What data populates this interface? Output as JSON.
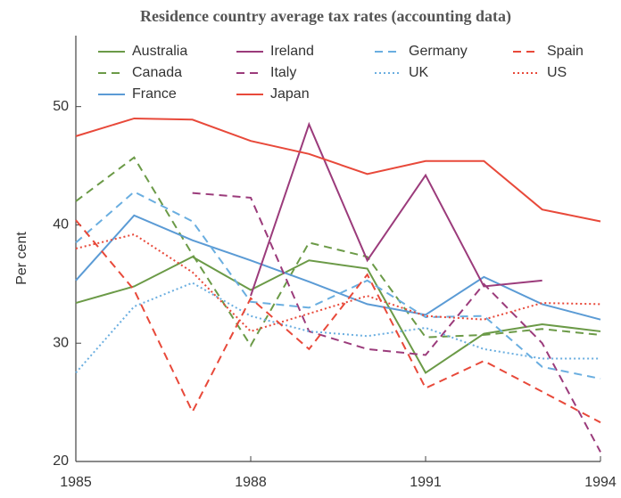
{
  "chart_data": {
    "type": "line",
    "title": "Residence country average tax rates (accounting data)",
    "y_label": "Per cent",
    "x": [
      1985,
      1986,
      1987,
      1988,
      1989,
      1990,
      1991,
      1992,
      1993,
      1994
    ],
    "xlim": [
      1985,
      1994
    ],
    "xticks": [
      1985,
      1988,
      1991,
      1994
    ],
    "ylim": [
      20,
      56
    ],
    "yticks": [
      20,
      30,
      40,
      50
    ],
    "grid": false,
    "series": [
      {
        "name": "Australia",
        "color": "#6b9a47",
        "dash": "solid",
        "values": [
          33.4,
          34.8,
          37.3,
          34.5,
          37.0,
          36.3,
          27.5,
          30.8,
          31.6,
          31.0
        ]
      },
      {
        "name": "Canada",
        "color": "#6b9a47",
        "dash": "dashed",
        "values": [
          42.0,
          45.7,
          37.5,
          29.8,
          38.5,
          37.3,
          30.5,
          30.7,
          31.2,
          30.7
        ]
      },
      {
        "name": "France",
        "color": "#5b9bd5",
        "dash": "solid",
        "values": [
          35.3,
          40.8,
          38.7,
          37.0,
          35.2,
          33.3,
          32.4,
          35.6,
          33.3,
          32.0
        ]
      },
      {
        "name": "Ireland",
        "color": "#9b3b7b",
        "dash": "solid",
        "values": [
          null,
          null,
          null,
          34.0,
          48.5,
          37.0,
          44.2,
          34.8,
          35.3,
          null
        ]
      },
      {
        "name": "Italy",
        "color": "#9b3b7b",
        "dash": "dashed",
        "values": [
          null,
          null,
          42.7,
          42.3,
          31.0,
          29.5,
          29.0,
          35.0,
          30.0,
          20.8
        ]
      },
      {
        "name": "Japan",
        "color": "#e8493a",
        "dash": "solid",
        "values": [
          47.5,
          49.0,
          48.9,
          47.1,
          46.0,
          44.3,
          45.4,
          45.4,
          41.3,
          40.3
        ]
      },
      {
        "name": "Germany",
        "color": "#6aaee0",
        "dash": "dashed",
        "values": [
          38.5,
          42.8,
          40.3,
          33.5,
          33.0,
          35.3,
          32.2,
          32.3,
          28.0,
          27.0
        ]
      },
      {
        "name": "UK",
        "color": "#6aaee0",
        "dash": "dotted",
        "values": [
          27.5,
          33.1,
          35.1,
          32.3,
          31.0,
          30.6,
          31.3,
          29.5,
          28.7,
          28.7
        ]
      },
      {
        "name": "Spain",
        "color": "#e8493a",
        "dash": "dashed",
        "values": [
          40.4,
          34.5,
          24.2,
          33.8,
          29.5,
          35.8,
          26.2,
          28.5,
          25.9,
          23.3
        ]
      },
      {
        "name": "US",
        "color": "#e8493a",
        "dash": "dotted",
        "values": [
          38.0,
          39.2,
          36.0,
          31.0,
          32.5,
          34.0,
          32.3,
          32.0,
          33.4,
          33.3
        ]
      }
    ]
  }
}
